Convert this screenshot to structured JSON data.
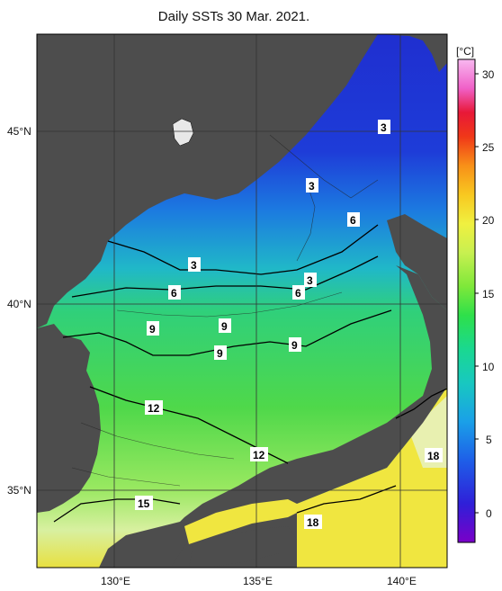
{
  "title": "Daily SSTs 30 Mar. 2021.",
  "lat_labels": [
    "45°N",
    "40°N",
    "35°N"
  ],
  "lon_labels": [
    "130°E",
    "135°E",
    "140°E"
  ],
  "colorbar": {
    "unit": "[°C]",
    "ticks": [
      "30",
      "25",
      "20",
      "15",
      "10",
      "5",
      "0"
    ],
    "colors": [
      "#7a00c8",
      "#2f1fd8",
      "#1e5fe8",
      "#1aa0e8",
      "#18c8c0",
      "#1ad890",
      "#2ee04a",
      "#7ee83a",
      "#c8f050",
      "#f0f040",
      "#f8c820",
      "#f89018",
      "#f03818",
      "#e81838",
      "#f060c8",
      "#f8b8f0"
    ]
  },
  "isotherm_labels": [
    "3",
    "3",
    "6",
    "3",
    "3",
    "6",
    "6",
    "9",
    "9",
    "9",
    "9",
    "12",
    "12",
    "15",
    "18",
    "18"
  ],
  "colors": {
    "land": "#4d4d4d",
    "coast": "#000000",
    "grid": "#333333"
  }
}
